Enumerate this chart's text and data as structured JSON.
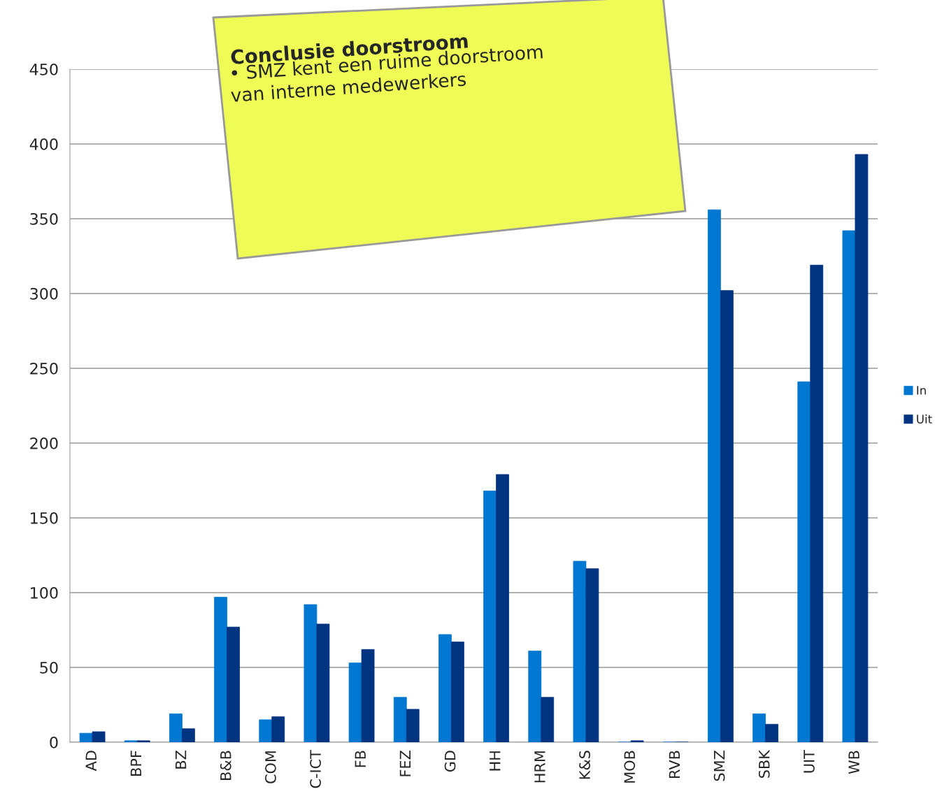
{
  "chart_data": {
    "type": "bar",
    "categories": [
      "AD",
      "BPF",
      "BZ",
      "B&B",
      "COM",
      "C-ICT",
      "FB",
      "FEZ",
      "GD",
      "HH",
      "HRM",
      "K&S",
      "MOB",
      "RVB",
      "SMZ",
      "SBK",
      "UIT",
      "WB"
    ],
    "series": [
      {
        "name": "In",
        "color": "#0077d0",
        "values": [
          6,
          1,
          19,
          97,
          15,
          92,
          53,
          30,
          72,
          168,
          61,
          121,
          0,
          0,
          356,
          19,
          241,
          342
        ]
      },
      {
        "name": "Uit",
        "color": "#003380",
        "values": [
          7,
          1,
          9,
          77,
          17,
          79,
          62,
          22,
          67,
          179,
          30,
          116,
          1,
          0,
          302,
          12,
          319,
          393
        ]
      }
    ],
    "ylim": [
      0,
      450
    ],
    "yticks": [
      0,
      50,
      100,
      150,
      200,
      250,
      300,
      350,
      400,
      450
    ],
    "grid": "y",
    "legend": "right",
    "annotations": [
      "Conclusie doorstroom",
      "• SMZ kent een ruime doorstroom\nvan interne medewerkers"
    ]
  }
}
